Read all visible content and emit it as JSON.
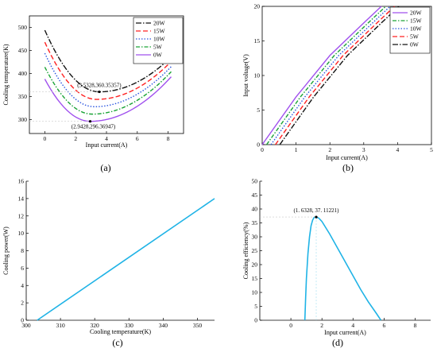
{
  "chart_data": [
    {
      "type": "line",
      "panel_label": "(a)",
      "xlabel": "Input current(A)",
      "ylabel": "Cooling temperature(K)",
      "xlim": [
        -1,
        9
      ],
      "ylim": [
        270,
        525
      ],
      "xticks": [
        0,
        2,
        4,
        6,
        8
      ],
      "yticks": [
        300,
        350,
        400,
        450,
        500
      ],
      "legend_position": "top-right",
      "series": [
        {
          "name": "20W",
          "color": "#111111",
          "dash": "7,2,1.5,2",
          "xmin": 0,
          "xmax": 8.2,
          "min_x": 3.5328,
          "min_y": 360.35357,
          "left_y": 494,
          "right_y": 436
        },
        {
          "name": "15W",
          "color": "#ff2020",
          "dash": "6,3",
          "xmin": 0,
          "xmax": 8.2,
          "min_x": 3.35,
          "min_y": 344,
          "left_y": 468,
          "right_y": 426
        },
        {
          "name": "10W",
          "color": "#2a55e0",
          "dash": "1.5,2",
          "xmin": 0,
          "xmax": 8.2,
          "min_x": 3.2,
          "min_y": 328,
          "left_y": 444,
          "right_y": 415
        },
        {
          "name": "5W",
          "color": "#1aa336",
          "dash": "5,2,1.5,2",
          "xmin": 0,
          "xmax": 8.2,
          "min_x": 3.07,
          "min_y": 312,
          "left_y": 414,
          "right_y": 404
        },
        {
          "name": "0W",
          "color": "#a050ee",
          "dash": "",
          "xmin": 0,
          "xmax": 8.2,
          "min_x": 2.9428,
          "min_y": 296.36947,
          "left_y": 388,
          "right_y": 393
        }
      ],
      "annotations": [
        {
          "text": "(3.5328,360.35357)",
          "x": 3.5328,
          "y": 360.35357
        },
        {
          "text": "(2.9428,296.36947)",
          "x": 2.9428,
          "y": 296.36947
        }
      ]
    },
    {
      "type": "line",
      "panel_label": "(b)",
      "xlabel": "Input current(A)",
      "ylabel": "Input voltage(V)",
      "xlim": [
        0,
        5
      ],
      "ylim": [
        0,
        20
      ],
      "xticks": [
        0,
        1,
        2,
        3,
        4,
        5
      ],
      "yticks": [
        0,
        5,
        10,
        15,
        20
      ],
      "legend_position": "top-right",
      "series": [
        {
          "name": "20W",
          "color": "#a050ee",
          "dash": "",
          "x": [
            0,
            1,
            2,
            3,
            3.52
          ],
          "y": [
            0,
            6.9,
            12.9,
            17.6,
            20
          ]
        },
        {
          "name": "15W",
          "color": "#1aa336",
          "dash": "5,2,1.5,2",
          "x": [
            0.13,
            1.13,
            2.13,
            3.13,
            3.65
          ],
          "y": [
            0,
            6.9,
            12.9,
            17.6,
            20
          ]
        },
        {
          "name": "10W",
          "color": "#2a55e0",
          "dash": "1.5,2",
          "x": [
            0.26,
            1.26,
            2.26,
            3.26,
            3.78
          ],
          "y": [
            0,
            6.9,
            12.9,
            17.6,
            20
          ]
        },
        {
          "name": "5W",
          "color": "#ff2020",
          "dash": "6,3",
          "x": [
            0.39,
            1.39,
            2.39,
            3.39,
            3.91
          ],
          "y": [
            0,
            6.9,
            12.9,
            17.6,
            20
          ]
        },
        {
          "name": "0W",
          "color": "#111111",
          "dash": "7,2,1.5,2",
          "x": [
            0.52,
            1.52,
            2.52,
            3.52,
            4.04
          ],
          "y": [
            0,
            6.9,
            12.9,
            17.6,
            20
          ]
        }
      ]
    },
    {
      "type": "line",
      "panel_label": "(c)",
      "xlabel": "Cooling temperature(K)",
      "ylabel": "Cooling power(W)",
      "xlim": [
        300,
        355
      ],
      "ylim": [
        0,
        16
      ],
      "xticks": [
        300,
        310,
        320,
        330,
        340,
        350
      ],
      "yticks": [
        0,
        2,
        4,
        6,
        8,
        10,
        12,
        14,
        16
      ],
      "series": [
        {
          "color": "#1fb3e6",
          "x": [
            303.2,
            355
          ],
          "y": [
            0,
            14
          ]
        }
      ]
    },
    {
      "type": "line",
      "panel_label": "(d)",
      "xlabel": "Input current(A)",
      "ylabel": "Cooling efficiency(%)",
      "xlim": [
        -2,
        9
      ],
      "ylim": [
        0,
        50
      ],
      "xticks": [
        0,
        2,
        4,
        6,
        8
      ],
      "yticks": [
        0,
        5,
        10,
        15,
        20,
        25,
        30,
        35,
        40,
        45,
        50
      ],
      "series": [
        {
          "color": "#1fb3e6",
          "x": [
            0.9,
            0.95,
            1.0,
            1.1,
            1.2,
            1.3,
            1.4,
            1.5,
            1.6328,
            1.8,
            2.0,
            2.5,
            3.0,
            3.5,
            4.0,
            4.5,
            5.0,
            5.5,
            5.8
          ],
          "y": [
            0,
            8,
            15,
            24,
            30,
            34,
            36,
            37,
            37.11221,
            36.7,
            35.5,
            31,
            26,
            21,
            16,
            11,
            6.5,
            2.5,
            0
          ]
        }
      ],
      "annotations": [
        {
          "text": "(1. 6328, 37. 11221)",
          "x": 1.6328,
          "y": 37.11221
        }
      ]
    }
  ]
}
